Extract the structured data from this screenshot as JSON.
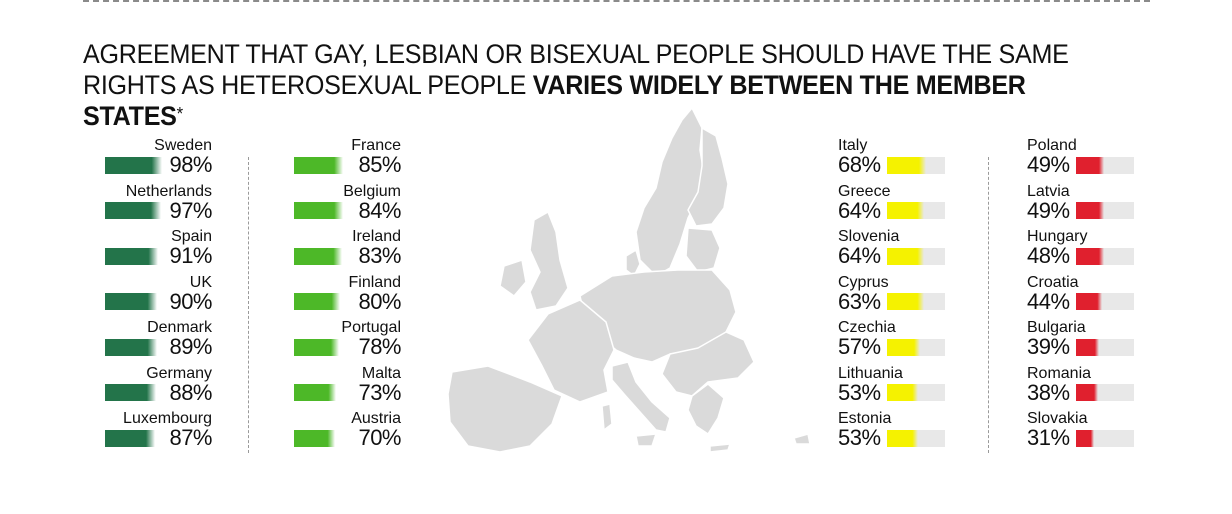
{
  "title": {
    "line1": "AGREEMENT THAT GAY, LESBIAN OR BISEXUAL PEOPLE SHOULD HAVE THE SAME",
    "line2_regular": "RIGHTS AS HETEROSEXUAL PEOPLE ",
    "line2_bold": "VARIES WIDELY BETWEEN THE MEMBER STATES",
    "asterisk": "*"
  },
  "colors": {
    "dark_green": "#23744a",
    "light_green": "#4db828",
    "yellow": "#f5f200",
    "red": "#e0202e",
    "track": "#e8e8e8",
    "map": "#dadada"
  },
  "chart_data": {
    "type": "bar",
    "title": "AGREEMENT THAT GAY, LESBIAN OR BISEXUAL PEOPLE SHOULD HAVE THE SAME RIGHTS AS HETEROSEXUAL PEOPLE VARIES WIDELY BETWEEN THE MEMBER STATES*",
    "unit": "%",
    "groups": [
      {
        "color": "dark_green",
        "items": [
          {
            "name": "Sweden",
            "value": 98,
            "label": "98%"
          },
          {
            "name": "Netherlands",
            "value": 97,
            "label": "97%"
          },
          {
            "name": "Spain",
            "value": 91,
            "label": "91%"
          },
          {
            "name": "UK",
            "value": 90,
            "label": "90%"
          },
          {
            "name": "Denmark",
            "value": 89,
            "label": "89%"
          },
          {
            "name": "Germany",
            "value": 88,
            "label": "88%"
          },
          {
            "name": "Luxembourg",
            "value": 87,
            "label": "87%"
          }
        ]
      },
      {
        "color": "light_green",
        "items": [
          {
            "name": "France",
            "value": 85,
            "label": "85%"
          },
          {
            "name": "Belgium",
            "value": 84,
            "label": "84%"
          },
          {
            "name": "Ireland",
            "value": 83,
            "label": "83%"
          },
          {
            "name": "Finland",
            "value": 80,
            "label": "80%"
          },
          {
            "name": "Portugal",
            "value": 78,
            "label": "78%"
          },
          {
            "name": "Malta",
            "value": 73,
            "label": "73%"
          },
          {
            "name": "Austria",
            "value": 70,
            "label": "70%"
          }
        ]
      },
      {
        "color": "yellow",
        "items": [
          {
            "name": "Italy",
            "value": 68,
            "label": "68%"
          },
          {
            "name": "Greece",
            "value": 64,
            "label": "64%"
          },
          {
            "name": "Slovenia",
            "value": 64,
            "label": "64%"
          },
          {
            "name": "Cyprus",
            "value": 63,
            "label": "63%"
          },
          {
            "name": "Czechia",
            "value": 57,
            "label": "57%"
          },
          {
            "name": "Lithuania",
            "value": 53,
            "label": "53%"
          },
          {
            "name": "Estonia",
            "value": 53,
            "label": "53%"
          }
        ]
      },
      {
        "color": "red",
        "items": [
          {
            "name": "Poland",
            "value": 49,
            "label": "49%"
          },
          {
            "name": "Latvia",
            "value": 49,
            "label": "49%"
          },
          {
            "name": "Hungary",
            "value": 48,
            "label": "48%"
          },
          {
            "name": "Croatia",
            "value": 44,
            "label": "44%"
          },
          {
            "name": "Bulgaria",
            "value": 39,
            "label": "39%"
          },
          {
            "name": "Romania",
            "value": 38,
            "label": "38%"
          },
          {
            "name": "Slovakia",
            "value": 31,
            "label": "31%"
          }
        ]
      }
    ],
    "value_range": [
      0,
      100
    ]
  }
}
